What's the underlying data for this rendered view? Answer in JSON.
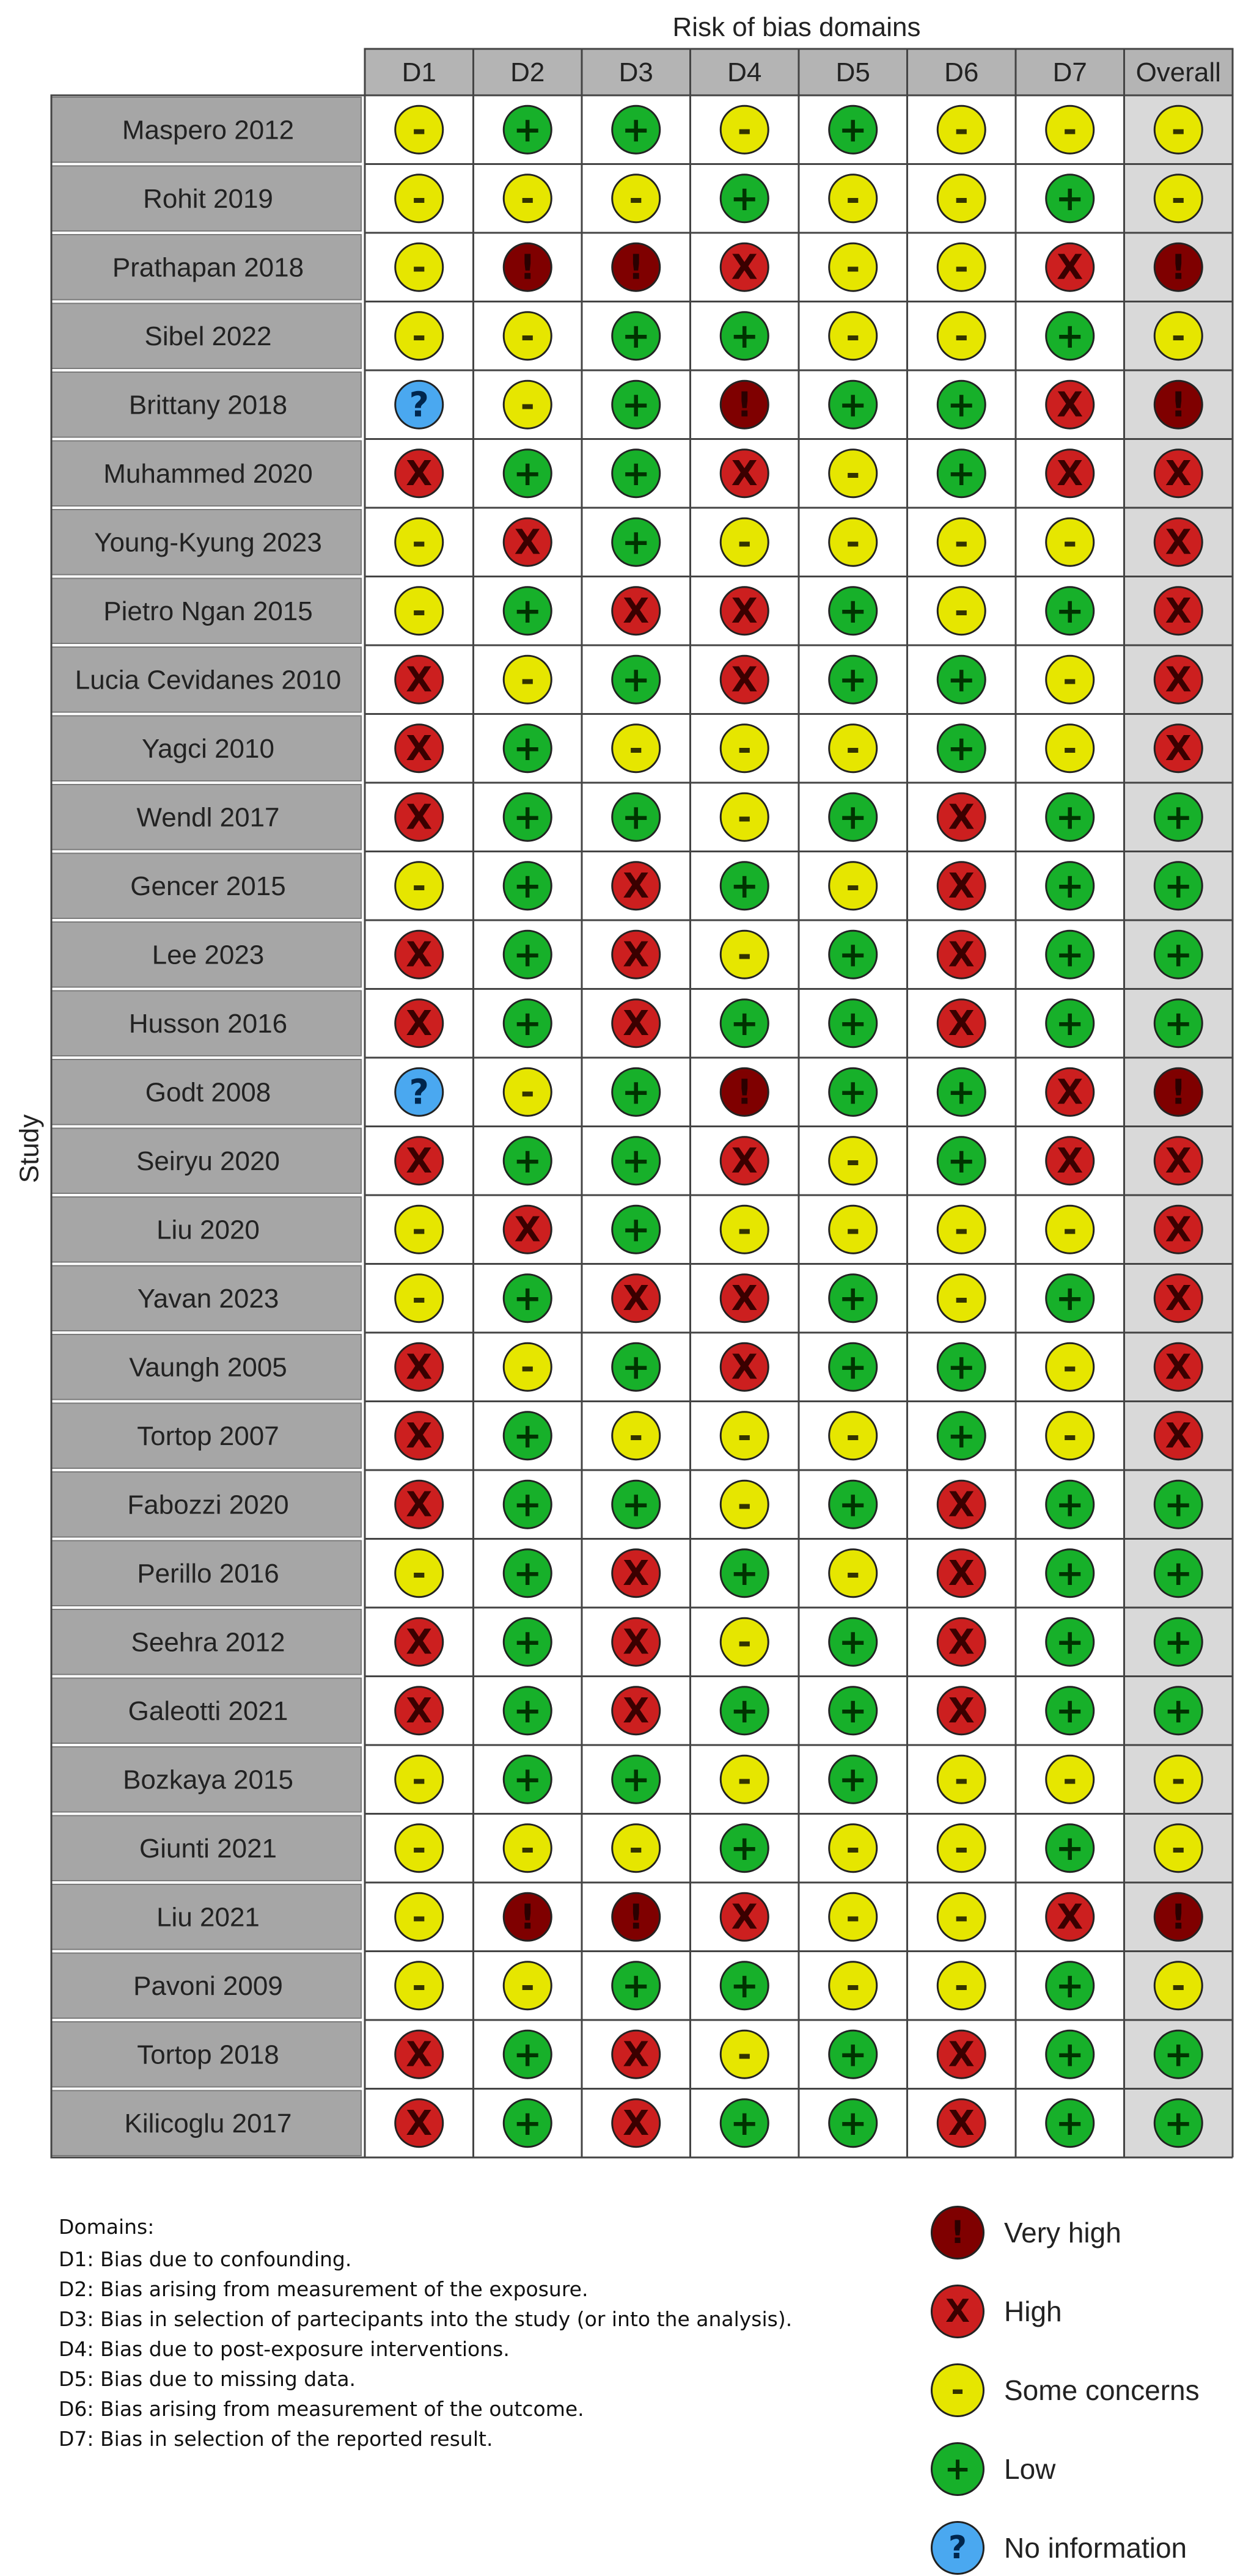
{
  "header": {
    "title": "Risk of bias domains"
  },
  "axis": {
    "study_label": "Study"
  },
  "columns": [
    "D1",
    "D2",
    "D3",
    "D4",
    "D5",
    "D6",
    "D7",
    "Overall"
  ],
  "judgement_styles": {
    "very_high": {
      "fill": "#7f0000",
      "glyph": "!",
      "text_color": "#2a0000",
      "label": "Very high"
    },
    "high": {
      "fill": "#cc1f1f",
      "glyph": "X",
      "text_color": "#3a0000",
      "label": "High"
    },
    "some": {
      "fill": "#e6e600",
      "glyph": "-",
      "text_color": "#333300",
      "label": "Some concerns"
    },
    "low": {
      "fill": "#17b02a",
      "glyph": "+",
      "text_color": "#003300",
      "label": "Low"
    },
    "ni": {
      "fill": "#4aa8f0",
      "glyph": "?",
      "text_color": "#00264d",
      "label": "No information"
    }
  },
  "colors": {
    "study_cell": "#a6a6a6",
    "header_cell": "#b4b4b4",
    "overall_column": "#d9d9d9",
    "grid_line": "#444444"
  },
  "studies": [
    {
      "name": "Maspero 2012",
      "j": [
        "some",
        "low",
        "low",
        "some",
        "low",
        "some",
        "some",
        "some"
      ]
    },
    {
      "name": "Rohit 2019",
      "j": [
        "some",
        "some",
        "some",
        "low",
        "some",
        "some",
        "low",
        "some"
      ]
    },
    {
      "name": "Prathapan 2018",
      "j": [
        "some",
        "very_high",
        "very_high",
        "high",
        "some",
        "some",
        "high",
        "very_high"
      ]
    },
    {
      "name": "Sibel 2022",
      "j": [
        "some",
        "some",
        "low",
        "low",
        "some",
        "some",
        "low",
        "some"
      ]
    },
    {
      "name": "Brittany 2018",
      "j": [
        "ni",
        "some",
        "low",
        "very_high",
        "low",
        "low",
        "high",
        "very_high"
      ]
    },
    {
      "name": "Muhammed 2020",
      "j": [
        "high",
        "low",
        "low",
        "high",
        "some",
        "low",
        "high",
        "high"
      ]
    },
    {
      "name": "Young-Kyung 2023",
      "j": [
        "some",
        "high",
        "low",
        "some",
        "some",
        "some",
        "some",
        "high"
      ]
    },
    {
      "name": "Pietro Ngan 2015",
      "j": [
        "some",
        "low",
        "high",
        "high",
        "low",
        "some",
        "low",
        "high"
      ]
    },
    {
      "name": "Lucia Cevidanes 2010",
      "j": [
        "high",
        "some",
        "low",
        "high",
        "low",
        "low",
        "some",
        "high"
      ]
    },
    {
      "name": "Yagci 2010",
      "j": [
        "high",
        "low",
        "some",
        "some",
        "some",
        "low",
        "some",
        "high"
      ]
    },
    {
      "name": "Wendl 2017",
      "j": [
        "high",
        "low",
        "low",
        "some",
        "low",
        "high",
        "low",
        "low"
      ]
    },
    {
      "name": "Gencer 2015",
      "j": [
        "some",
        "low",
        "high",
        "low",
        "some",
        "high",
        "low",
        "low"
      ]
    },
    {
      "name": "Lee 2023",
      "j": [
        "high",
        "low",
        "high",
        "some",
        "low",
        "high",
        "low",
        "low"
      ]
    },
    {
      "name": "Husson 2016",
      "j": [
        "high",
        "low",
        "high",
        "low",
        "low",
        "high",
        "low",
        "low"
      ]
    },
    {
      "name": "Godt 2008",
      "j": [
        "ni",
        "some",
        "low",
        "very_high",
        "low",
        "low",
        "high",
        "very_high"
      ]
    },
    {
      "name": "Seiryu 2020",
      "j": [
        "high",
        "low",
        "low",
        "high",
        "some",
        "low",
        "high",
        "high"
      ]
    },
    {
      "name": "Liu 2020",
      "j": [
        "some",
        "high",
        "low",
        "some",
        "some",
        "some",
        "some",
        "high"
      ]
    },
    {
      "name": "Yavan 2023",
      "j": [
        "some",
        "low",
        "high",
        "high",
        "low",
        "some",
        "low",
        "high"
      ]
    },
    {
      "name": "Vaungh 2005",
      "j": [
        "high",
        "some",
        "low",
        "high",
        "low",
        "low",
        "some",
        "high"
      ]
    },
    {
      "name": "Tortop 2007",
      "j": [
        "high",
        "low",
        "some",
        "some",
        "some",
        "low",
        "some",
        "high"
      ]
    },
    {
      "name": "Fabozzi 2020",
      "j": [
        "high",
        "low",
        "low",
        "some",
        "low",
        "high",
        "low",
        "low"
      ]
    },
    {
      "name": "Perillo 2016",
      "j": [
        "some",
        "low",
        "high",
        "low",
        "some",
        "high",
        "low",
        "low"
      ]
    },
    {
      "name": "Seehra 2012",
      "j": [
        "high",
        "low",
        "high",
        "some",
        "low",
        "high",
        "low",
        "low"
      ]
    },
    {
      "name": "Galeotti 2021",
      "j": [
        "high",
        "low",
        "high",
        "low",
        "low",
        "high",
        "low",
        "low"
      ]
    },
    {
      "name": "Bozkaya 2015",
      "j": [
        "some",
        "low",
        "low",
        "some",
        "low",
        "some",
        "some",
        "some"
      ]
    },
    {
      "name": "Giunti 2021",
      "j": [
        "some",
        "some",
        "some",
        "low",
        "some",
        "some",
        "low",
        "some"
      ]
    },
    {
      "name": "Liu 2021",
      "j": [
        "some",
        "very_high",
        "very_high",
        "high",
        "some",
        "some",
        "high",
        "very_high"
      ]
    },
    {
      "name": "Pavoni 2009",
      "j": [
        "some",
        "some",
        "low",
        "low",
        "some",
        "some",
        "low",
        "some"
      ]
    },
    {
      "name": "Tortop 2018",
      "j": [
        "high",
        "low",
        "high",
        "some",
        "low",
        "high",
        "low",
        "low"
      ]
    },
    {
      "name": "Kilicoglu 2017",
      "j": [
        "high",
        "low",
        "high",
        "low",
        "low",
        "high",
        "low",
        "low"
      ]
    }
  ],
  "domains_legend": {
    "title": "Domains:",
    "items": [
      "D1: Bias due to confounding.",
      "D2: Bias arising from measurement of the exposure.",
      "D3: Bias in selection of partecipants into the study (or into the analysis).",
      "D4: Bias due to post-exposure interventions.",
      "D5: Bias due to missing data.",
      "D6: Bias arising from measurement of the outcome.",
      "D7: Bias in selection of the reported result."
    ]
  },
  "judgement_key": [
    "very_high",
    "high",
    "some",
    "low",
    "ni"
  ]
}
